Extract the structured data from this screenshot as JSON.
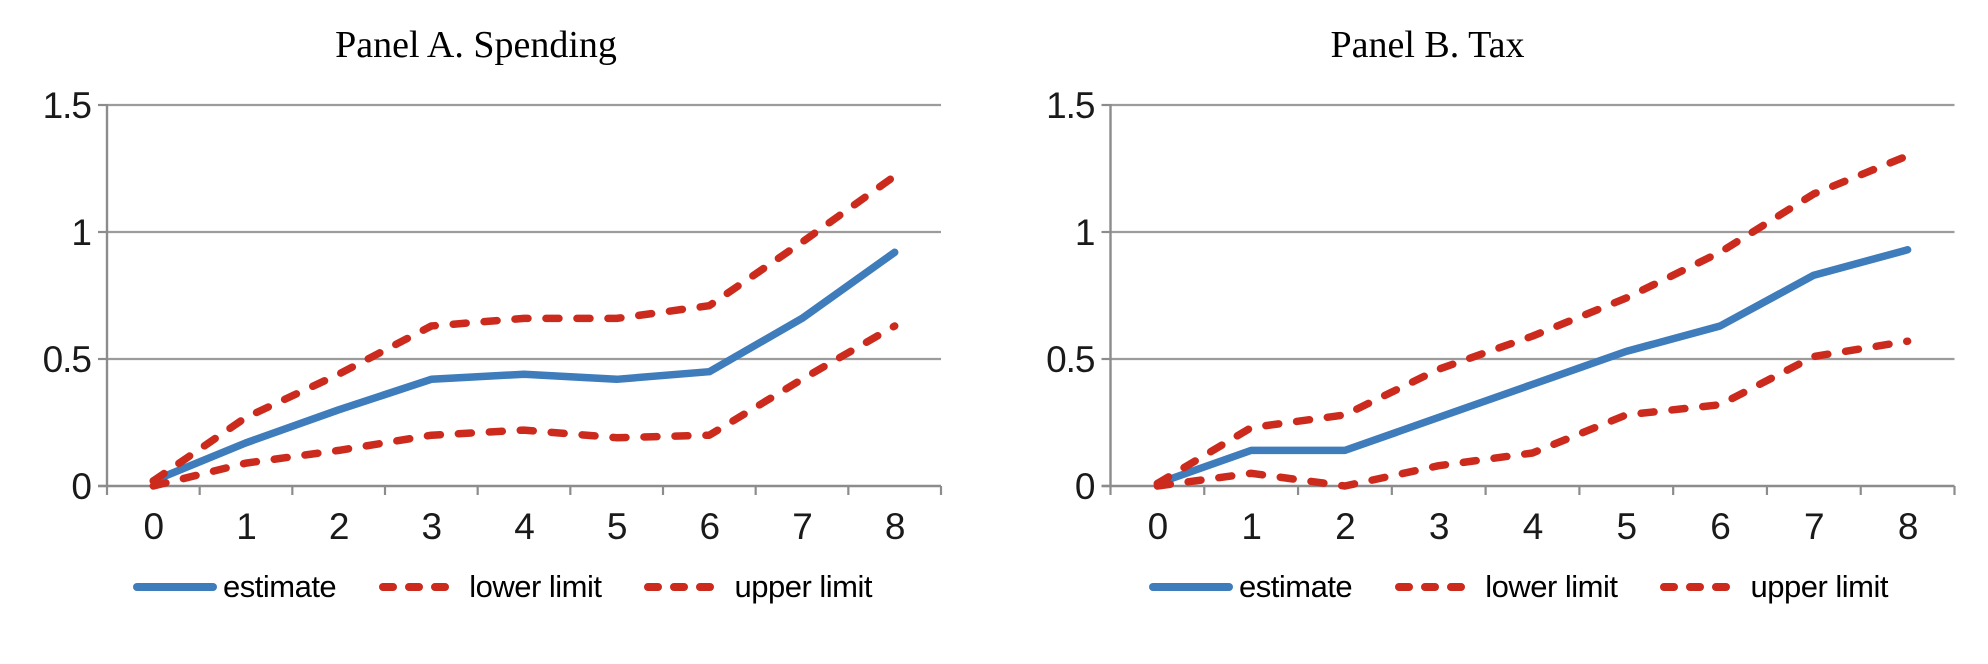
{
  "figure": {
    "background": "#ffffff"
  },
  "colors": {
    "estimate_blue": "#3E7CBB",
    "limit_red": "#CB2A1D",
    "gridline_gray": "#9C9C9C",
    "axis_gray": "#8C8C8C",
    "text_black": "#1A1A1A"
  },
  "chart_data": [
    {
      "type": "line",
      "title": "Panel A. Spending",
      "xlabel": "",
      "ylabel": "",
      "categories": [
        "0",
        "1",
        "2",
        "3",
        "4",
        "5",
        "6",
        "7",
        "8"
      ],
      "ylim": [
        0,
        1.5
      ],
      "yticks": [
        0,
        0.5,
        1,
        1.5
      ],
      "ytick_labels": [
        "0",
        "0.5",
        "1",
        "1.5"
      ],
      "grid": "horizontal",
      "legend_position": "bottom",
      "series": [
        {
          "name": "estimate",
          "style": "solid",
          "color": "#3E7CBB",
          "values": [
            0.02,
            0.17,
            0.3,
            0.42,
            0.44,
            0.42,
            0.45,
            0.66,
            0.92
          ]
        },
        {
          "name": "lower limit",
          "style": "dashed",
          "color": "#CB2A1D",
          "values": [
            0.0,
            0.09,
            0.14,
            0.2,
            0.22,
            0.19,
            0.2,
            0.42,
            0.63
          ]
        },
        {
          "name": "upper limit",
          "style": "dashed",
          "color": "#CB2A1D",
          "values": [
            0.02,
            0.27,
            0.44,
            0.63,
            0.66,
            0.66,
            0.71,
            0.96,
            1.22
          ]
        }
      ]
    },
    {
      "type": "line",
      "title": "Panel B. Tax",
      "xlabel": "",
      "ylabel": "",
      "categories": [
        "0",
        "1",
        "2",
        "3",
        "4",
        "5",
        "6",
        "7",
        "8"
      ],
      "ylim": [
        0,
        1.5
      ],
      "yticks": [
        0,
        0.5,
        1,
        1.5
      ],
      "ytick_labels": [
        "0",
        "0.5",
        "1",
        "1.5"
      ],
      "grid": "horizontal",
      "legend_position": "bottom",
      "series": [
        {
          "name": "estimate",
          "style": "solid",
          "color": "#3E7CBB",
          "values": [
            0.01,
            0.14,
            0.14,
            0.27,
            0.4,
            0.53,
            0.63,
            0.83,
            0.93
          ]
        },
        {
          "name": "lower limit",
          "style": "dashed",
          "color": "#CB2A1D",
          "values": [
            0.0,
            0.05,
            0.0,
            0.08,
            0.13,
            0.28,
            0.32,
            0.51,
            0.57
          ]
        },
        {
          "name": "upper limit",
          "style": "dashed",
          "color": "#CB2A1D",
          "values": [
            0.01,
            0.23,
            0.28,
            0.46,
            0.59,
            0.74,
            0.92,
            1.15,
            1.3
          ]
        }
      ]
    }
  ]
}
